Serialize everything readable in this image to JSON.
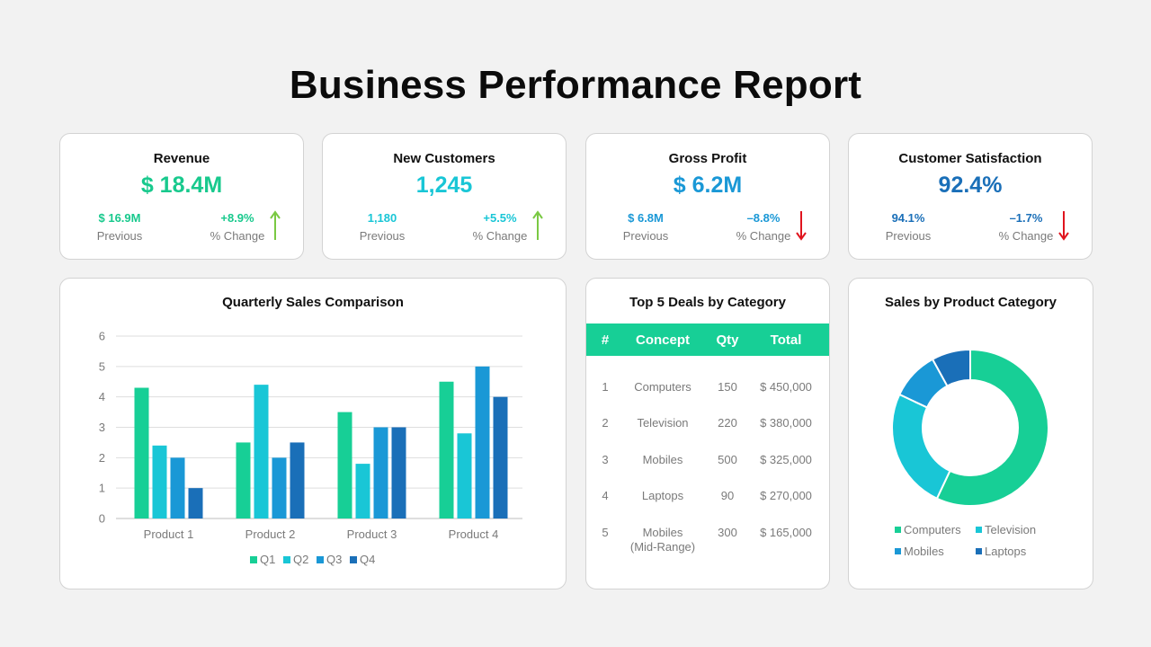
{
  "page": {
    "title": "Business Performance Report"
  },
  "kpis": [
    {
      "title": "Revenue",
      "value": "$ 18.4M",
      "previous_value": "$ 16.9M",
      "previous_label": "Previous",
      "change_value": "+8.9%",
      "change_label": "% Change",
      "direction": "up",
      "value_color": "#18c98d",
      "sub_color": "#18c98d",
      "arrow_color": "#7ac943"
    },
    {
      "title": "New Customers",
      "value": "1,245",
      "previous_value": "1,180",
      "previous_label": "Previous",
      "change_value": "+5.5%",
      "change_label": "% Change",
      "direction": "up",
      "value_color": "#19c6d6",
      "sub_color": "#19c6d6",
      "arrow_color": "#7ac943"
    },
    {
      "title": "Gross Profit",
      "value": "$ 6.2M",
      "previous_value": "$ 6.8M",
      "previous_label": "Previous",
      "change_value": "–8.8%",
      "change_label": "% Change",
      "direction": "down",
      "value_color": "#1a98d6",
      "sub_color": "#1a98d6",
      "arrow_color": "#e0141e"
    },
    {
      "title": "Customer Satisfaction",
      "value": "92.4%",
      "previous_value": "94.1%",
      "previous_label": "Previous",
      "change_value": "–1.7%",
      "change_label": "% Change",
      "direction": "down",
      "value_color": "#1a6fb8",
      "sub_color": "#1a6fb8",
      "arrow_color": "#e0141e"
    }
  ],
  "sales_chart": {
    "title": "Quarterly Sales Comparison"
  },
  "deals": {
    "title": "Top 5 Deals by Category",
    "columns": [
      "#",
      "Concept",
      "Qty",
      "Total"
    ],
    "rows": [
      {
        "num": "1",
        "concept": "Computers",
        "concept2": "",
        "qty": "150",
        "total": "$ 450,000"
      },
      {
        "num": "2",
        "concept": "Television",
        "concept2": "",
        "qty": "220",
        "total": "$ 380,000"
      },
      {
        "num": "3",
        "concept": "Mobiles",
        "concept2": "",
        "qty": "500",
        "total": "$ 325,000"
      },
      {
        "num": "4",
        "concept": "Laptops",
        "concept2": "",
        "qty": "90",
        "total": "$ 270,000"
      },
      {
        "num": "5",
        "concept": "Mobiles",
        "concept2": "(Mid-Range)",
        "qty": "300",
        "total": "$ 165,000"
      }
    ],
    "header_color": "#17cf96"
  },
  "category_chart": {
    "title": "Sales by Product Category"
  },
  "chart_data": [
    {
      "type": "bar",
      "title": "Quarterly Sales Comparison",
      "categories": [
        "Product 1",
        "Product 2",
        "Product 3",
        "Product 4"
      ],
      "series": [
        {
          "name": "Q1",
          "values": [
            4.3,
            2.5,
            3.5,
            4.5
          ],
          "color": "#17cf96"
        },
        {
          "name": "Q2",
          "values": [
            2.4,
            4.4,
            1.8,
            2.8
          ],
          "color": "#19c6d6"
        },
        {
          "name": "Q3",
          "values": [
            2.0,
            2.0,
            3.0,
            5.0
          ],
          "color": "#1a98d6"
        },
        {
          "name": "Q4",
          "values": [
            1.0,
            2.5,
            3.0,
            4.0
          ],
          "color": "#1a6fb8"
        }
      ],
      "yticks": [
        "0",
        "1",
        "2",
        "3",
        "4",
        "5",
        "6"
      ],
      "ylim": [
        0,
        6
      ],
      "grid": true,
      "legend": "bottom"
    },
    {
      "type": "pie",
      "title": "Sales by Product Category",
      "donut": true,
      "labels": [
        "Computers",
        "Television",
        "Mobiles",
        "Laptops"
      ],
      "values": [
        57,
        25,
        10,
        8
      ],
      "colors": [
        "#17cf96",
        "#19c6d6",
        "#1a98d6",
        "#1a6fb8"
      ],
      "legend": "bottom"
    }
  ]
}
